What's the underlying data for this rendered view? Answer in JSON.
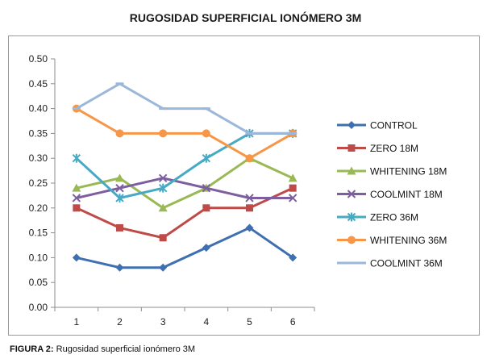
{
  "caption": {
    "prefix": "FIGURA 2:",
    "text": "Rugosidad superficial ionómero 3M"
  },
  "chart_data": {
    "type": "line",
    "title": "RUGOSIDAD SUPERFICIAL IONÓMERO 3M",
    "xlabel": "",
    "ylabel": "",
    "x": [
      1,
      2,
      3,
      4,
      5,
      6
    ],
    "ylim": [
      0,
      0.5
    ],
    "yticks": [
      "0.00",
      "0.05",
      "0.10",
      "0.15",
      "0.20",
      "0.25",
      "0.30",
      "0.35",
      "0.40",
      "0.45",
      "0.50"
    ],
    "grid": false,
    "legend": "right",
    "series": [
      {
        "name": "CONTROL",
        "values": [
          0.1,
          0.08,
          0.08,
          0.12,
          0.16,
          0.1
        ],
        "color": "#3e6fb0",
        "marker": "diamond"
      },
      {
        "name": "ZERO 18M",
        "values": [
          0.2,
          0.16,
          0.14,
          0.2,
          0.2,
          0.24
        ],
        "color": "#be4b48",
        "marker": "square"
      },
      {
        "name": "WHITENING 18M",
        "values": [
          0.24,
          0.26,
          0.2,
          0.24,
          0.3,
          0.26
        ],
        "color": "#98b954",
        "marker": "triangle"
      },
      {
        "name": "COOLMINT 18M",
        "values": [
          0.22,
          0.24,
          0.26,
          0.24,
          0.22,
          0.22
        ],
        "color": "#7d5fa0",
        "marker": "x"
      },
      {
        "name": "ZERO 36M",
        "values": [
          0.3,
          0.22,
          0.24,
          0.3,
          0.35,
          0.35
        ],
        "color": "#46aac5",
        "marker": "star"
      },
      {
        "name": "WHITENING 36M",
        "values": [
          0.4,
          0.35,
          0.35,
          0.35,
          0.3,
          0.35
        ],
        "color": "#f79646",
        "marker": "circle"
      },
      {
        "name": "COOLMINT 36M",
        "values": [
          0.4,
          0.45,
          0.4,
          0.4,
          0.35,
          0.35
        ],
        "color": "#9bb7d9",
        "marker": "dash"
      }
    ]
  }
}
